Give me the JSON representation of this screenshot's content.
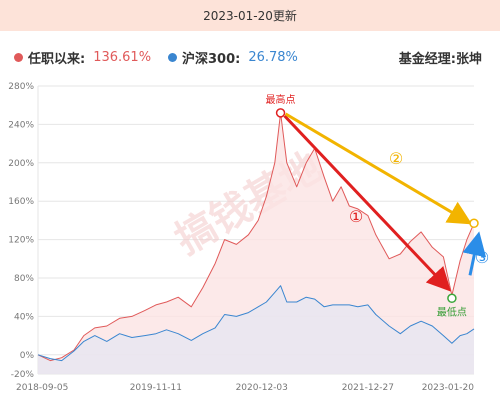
{
  "date": "2023-01-20更新",
  "legend": {
    "series1": {
      "name": "任职以来:",
      "value": "136.61%",
      "color": "#e05a5a"
    },
    "series2": {
      "name": "沪深300:",
      "value": "26.78%",
      "color": "#3a86d0"
    },
    "manager": "基金经理:张坤"
  },
  "watermark": "搞钱基地",
  "annotations": {
    "peak": "最高点",
    "low": "最低点",
    "n1": "①",
    "n2": "②",
    "n3": "③"
  },
  "chart_data": {
    "type": "area",
    "x": [
      "2018-09-05",
      "2019-11-11",
      "2020-12-03",
      "2021-12-27",
      "2023-01-20"
    ],
    "ylim": [
      -20,
      280
    ],
    "yticks": [
      280,
      240,
      200,
      160,
      120,
      80,
      40,
      0,
      -20
    ],
    "ytick_labels": [
      "280%",
      "240%",
      "200%",
      "160%",
      "120%",
      "80%",
      "40%",
      "0%",
      "-20%"
    ],
    "xtick_labels": [
      "2018-09-05",
      "2019-11-11",
      "2020-12-03",
      "2021-12-27",
      "2023-01-20"
    ],
    "grid": true,
    "series": [
      {
        "name": "任职以来",
        "color": "#e05a5a",
        "points": [
          [
            "2018-09-05",
            0
          ],
          [
            "2018-10-20",
            -6
          ],
          [
            "2018-12-01",
            -3
          ],
          [
            "2019-01-15",
            5
          ],
          [
            "2019-02-20",
            20
          ],
          [
            "2019-04-01",
            28
          ],
          [
            "2019-05-15",
            30
          ],
          [
            "2019-07-01",
            38
          ],
          [
            "2019-08-15",
            40
          ],
          [
            "2019-10-01",
            46
          ],
          [
            "2019-11-11",
            52
          ],
          [
            "2019-12-20",
            55
          ],
          [
            "2020-02-01",
            60
          ],
          [
            "2020-03-20",
            50
          ],
          [
            "2020-05-01",
            70
          ],
          [
            "2020-06-15",
            95
          ],
          [
            "2020-07-20",
            120
          ],
          [
            "2020-09-01",
            115
          ],
          [
            "2020-10-15",
            125
          ],
          [
            "2020-11-20",
            140
          ],
          [
            "2020-12-20",
            165
          ],
          [
            "2021-01-20",
            200
          ],
          [
            "2021-02-10",
            252
          ],
          [
            "2021-03-05",
            200
          ],
          [
            "2021-04-10",
            175
          ],
          [
            "2021-05-15",
            200
          ],
          [
            "2021-06-15",
            215
          ],
          [
            "2021-07-20",
            185
          ],
          [
            "2021-08-20",
            160
          ],
          [
            "2021-09-20",
            175
          ],
          [
            "2021-10-20",
            155
          ],
          [
            "2021-11-20",
            152
          ],
          [
            "2021-12-27",
            145
          ],
          [
            "2022-01-25",
            125
          ],
          [
            "2022-03-15",
            100
          ],
          [
            "2022-04-25",
            105
          ],
          [
            "2022-06-01",
            118
          ],
          [
            "2022-07-10",
            128
          ],
          [
            "2022-08-20",
            112
          ],
          [
            "2022-09-30",
            102
          ],
          [
            "2022-10-31",
            62
          ],
          [
            "2022-11-30",
            98
          ],
          [
            "2022-12-25",
            120
          ],
          [
            "2023-01-20",
            137
          ]
        ]
      },
      {
        "name": "沪深300",
        "color": "#3a86d0",
        "points": [
          [
            "2018-09-05",
            0
          ],
          [
            "2018-10-20",
            -4
          ],
          [
            "2018-12-01",
            -6
          ],
          [
            "2019-01-15",
            4
          ],
          [
            "2019-02-20",
            14
          ],
          [
            "2019-04-01",
            20
          ],
          [
            "2019-05-15",
            14
          ],
          [
            "2019-07-01",
            22
          ],
          [
            "2019-08-15",
            18
          ],
          [
            "2019-10-01",
            20
          ],
          [
            "2019-11-11",
            22
          ],
          [
            "2019-12-20",
            26
          ],
          [
            "2020-02-01",
            22
          ],
          [
            "2020-03-20",
            15
          ],
          [
            "2020-05-01",
            22
          ],
          [
            "2020-06-15",
            28
          ],
          [
            "2020-07-20",
            42
          ],
          [
            "2020-09-01",
            40
          ],
          [
            "2020-10-15",
            44
          ],
          [
            "2020-11-20",
            50
          ],
          [
            "2020-12-20",
            55
          ],
          [
            "2021-01-20",
            65
          ],
          [
            "2021-02-10",
            72
          ],
          [
            "2021-03-05",
            55
          ],
          [
            "2021-04-10",
            55
          ],
          [
            "2021-05-15",
            60
          ],
          [
            "2021-06-15",
            58
          ],
          [
            "2021-07-20",
            50
          ],
          [
            "2021-08-20",
            52
          ],
          [
            "2021-09-20",
            52
          ],
          [
            "2021-10-20",
            52
          ],
          [
            "2021-11-20",
            50
          ],
          [
            "2021-12-27",
            52
          ],
          [
            "2022-01-25",
            42
          ],
          [
            "2022-03-15",
            30
          ],
          [
            "2022-04-25",
            22
          ],
          [
            "2022-06-01",
            30
          ],
          [
            "2022-07-10",
            35
          ],
          [
            "2022-08-20",
            30
          ],
          [
            "2022-09-30",
            20
          ],
          [
            "2022-10-31",
            12
          ],
          [
            "2022-11-30",
            20
          ],
          [
            "2022-12-25",
            22
          ],
          [
            "2023-01-20",
            27
          ]
        ]
      }
    ]
  }
}
